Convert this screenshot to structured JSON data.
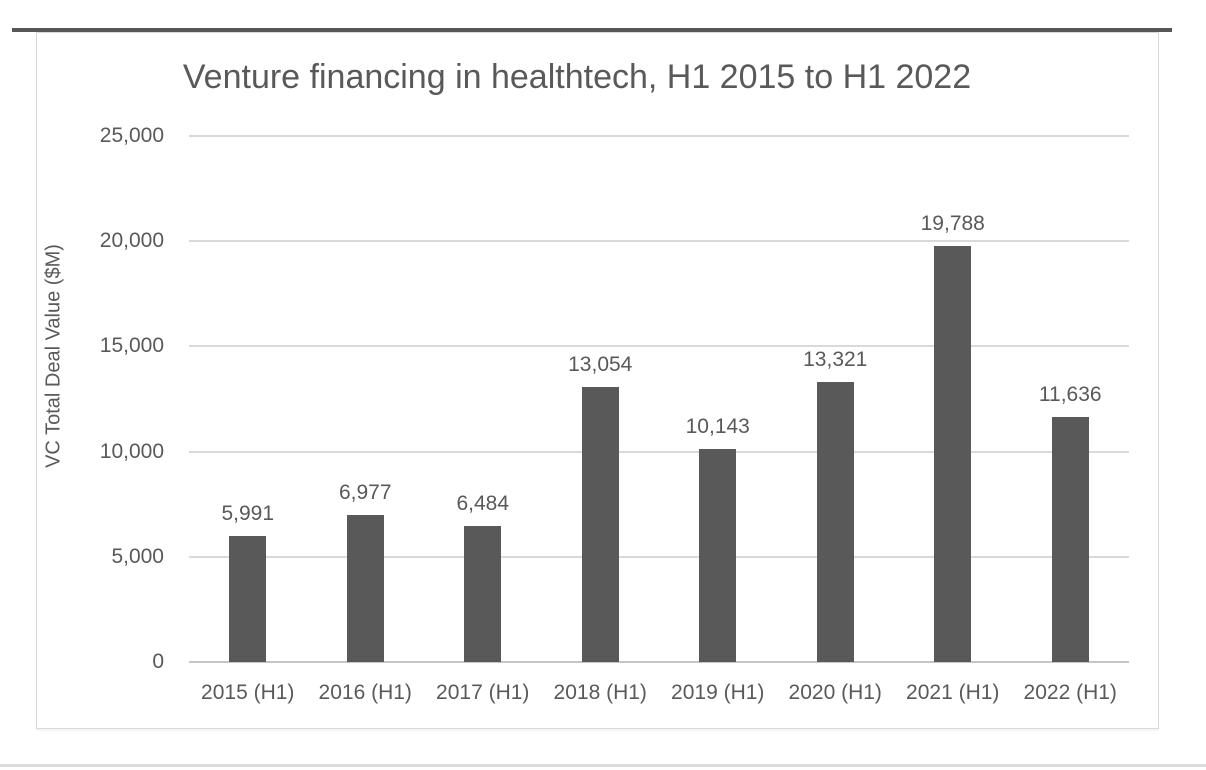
{
  "chart_data": {
    "type": "bar",
    "title": "Venture financing in healthtech, H1 2015 to H1 2022",
    "xlabel": "",
    "ylabel": "VC Total Deal Value ($M)",
    "categories": [
      "2015 (H1)",
      "2016 (H1)",
      "2017 (H1)",
      "2018 (H1)",
      "2019 (H1)",
      "2020 (H1)",
      "2021 (H1)",
      "2022 (H1)"
    ],
    "values": [
      5991,
      6977,
      6484,
      13054,
      10143,
      13321,
      19788,
      11636
    ],
    "data_labels": [
      "5,991",
      "6,977",
      "6,484",
      "13,054",
      "10,143",
      "13,321",
      "19,788",
      "11,636"
    ],
    "y_ticks": [
      0,
      5000,
      10000,
      15000,
      20000,
      25000
    ],
    "y_tick_labels": [
      "0",
      "5,000",
      "10,000",
      "15,000",
      "20,000",
      "25,000"
    ],
    "ylim": [
      0,
      25000
    ],
    "grid": true,
    "legend": "none",
    "colors": {
      "bar": "#595959",
      "text": "#595959",
      "gridline": "#d9d9d9",
      "axis_line": "#c6c6c6",
      "top_rule": "#565656",
      "card_border": "#d9d9d9",
      "bottom_rule": "#dcdcdc",
      "background": "#ffffff"
    }
  }
}
